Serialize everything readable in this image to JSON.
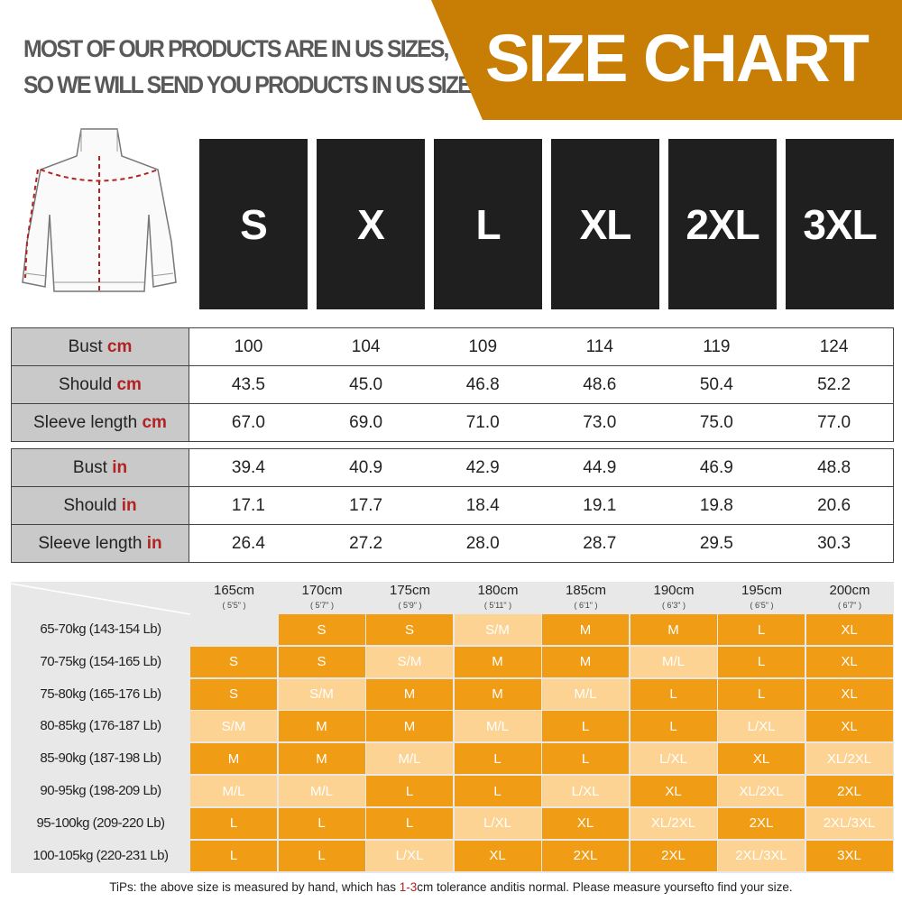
{
  "header": {
    "note_line1": "MOST OF OUR PRODUCTS ARE IN US SIZES,",
    "note_line2": "SO WE WILL SEND YOU PRODUCTS IN US SIZES.",
    "title": "SIZE CHART",
    "accent": "#c87d04"
  },
  "sizes": [
    "S",
    "X",
    "L",
    "XL",
    "2XL",
    "3XL"
  ],
  "cm_table": [
    {
      "label": "Bust",
      "unit": "cm",
      "values": [
        "100",
        "104",
        "109",
        "114",
        "119",
        "124"
      ]
    },
    {
      "label": "Should",
      "unit": "cm",
      "values": [
        "43.5",
        "45.0",
        "46.8",
        "48.6",
        "50.4",
        "52.2"
      ]
    },
    {
      "label": "Sleeve length",
      "unit": "cm",
      "values": [
        "67.0",
        "69.0",
        "71.0",
        "73.0",
        "75.0",
        "77.0"
      ]
    }
  ],
  "in_table": [
    {
      "label": "Bust",
      "unit": "in",
      "values": [
        "39.4",
        "40.9",
        "42.9",
        "44.9",
        "46.9",
        "48.8"
      ]
    },
    {
      "label": "Should",
      "unit": "in",
      "values": [
        "17.1",
        "17.7",
        "18.4",
        "19.1",
        "19.8",
        "20.6"
      ]
    },
    {
      "label": "Sleeve length",
      "unit": "in",
      "values": [
        "26.4",
        "27.2",
        "28.0",
        "28.7",
        "29.5",
        "30.3"
      ]
    }
  ],
  "fit_grid": {
    "colors": {
      "single": "#f09c14",
      "combined": "#fdd393",
      "empty": "#e8e8e8"
    },
    "heights": [
      {
        "cm": "165cm",
        "ft": "( 5'5\" )"
      },
      {
        "cm": "170cm",
        "ft": "( 5'7\" )"
      },
      {
        "cm": "175cm",
        "ft": "( 5'9\" )"
      },
      {
        "cm": "180cm",
        "ft": "( 5'11\" )"
      },
      {
        "cm": "185cm",
        "ft": "( 6'1\" )"
      },
      {
        "cm": "190cm",
        "ft": "( 6'3\" )"
      },
      {
        "cm": "195cm",
        "ft": "( 6'5\" )"
      },
      {
        "cm": "200cm",
        "ft": "( 6'7\" )"
      }
    ],
    "rows": [
      {
        "weight": "65-70kg (143-154 Lb)",
        "sizes": [
          "",
          "S",
          "S",
          "S/M",
          "M",
          "M",
          "L",
          "XL"
        ]
      },
      {
        "weight": "70-75kg (154-165 Lb)",
        "sizes": [
          "S",
          "S",
          "S/M",
          "M",
          "M",
          "M/L",
          "L",
          "XL"
        ]
      },
      {
        "weight": "75-80kg (165-176 Lb)",
        "sizes": [
          "S",
          "S/M",
          "M",
          "M",
          "M/L",
          "L",
          "L",
          "XL"
        ]
      },
      {
        "weight": "80-85kg (176-187 Lb)",
        "sizes": [
          "S/M",
          "M",
          "M",
          "M/L",
          "L",
          "L",
          "L/XL",
          "XL"
        ]
      },
      {
        "weight": "85-90kg (187-198 Lb)",
        "sizes": [
          "M",
          "M",
          "M/L",
          "L",
          "L",
          "L/XL",
          "XL",
          "XL/2XL"
        ]
      },
      {
        "weight": "90-95kg (198-209 Lb)",
        "sizes": [
          "M/L",
          "M/L",
          "L",
          "L",
          "L/XL",
          "XL",
          "XL/2XL",
          "2XL"
        ]
      },
      {
        "weight": "95-100kg (209-220 Lb)",
        "sizes": [
          "L",
          "L",
          "L",
          "L/XL",
          "XL",
          "XL/2XL",
          "2XL",
          "2XL/3XL"
        ]
      },
      {
        "weight": "100-105kg (220-231 Lb)",
        "sizes": [
          "L",
          "L",
          "L/XL",
          "XL",
          "2XL",
          "2XL",
          "2XL/3XL",
          "3XL"
        ]
      }
    ]
  },
  "tip": {
    "before": "TiPs: the above size is measured by hand, which has ",
    "highlight": "1-3",
    "after": "cm tolerance anditis normal. Please measure yoursefto find your size."
  }
}
